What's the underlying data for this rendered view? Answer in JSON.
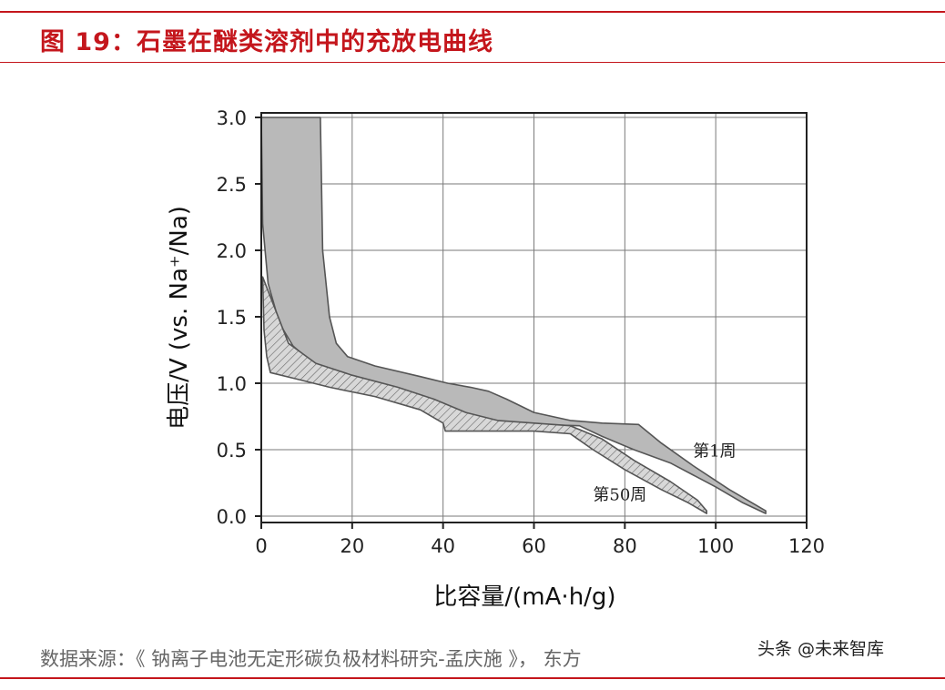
{
  "figure": {
    "title": "图 19：石墨在醚类溶剂中的充放电曲线",
    "source": "数据来源：《 钠离子电池无定形碳负极材料研究-孟庆施 》，  东方",
    "watermark": "头条 @未来智库"
  },
  "colors": {
    "accent": "#c4161c",
    "cycle1_fill": "#b9b9b9",
    "cycle50_fill": "#d8d8d8",
    "outline": "#555555",
    "hatch": "#666666",
    "grid": "#7a7a7a"
  },
  "chart_data": {
    "type": "line",
    "xlabel": "比容量/(mA·h/g)",
    "ylabel": "电压/V (vs. Na⁺/Na)",
    "xlim": [
      0,
      120
    ],
    "ylim": [
      0,
      3
    ],
    "xticks": [
      0,
      20,
      40,
      60,
      80,
      100,
      120
    ],
    "yticks": [
      0.0,
      0.5,
      1.0,
      1.5,
      2.0,
      2.5,
      3.0
    ],
    "yticklabels": [
      "0.0",
      "0.5",
      "1.0",
      "1.5",
      "2.0",
      "2.5",
      "3.0"
    ],
    "grid": true,
    "series": [
      {
        "name": "第1周",
        "fill": "solid",
        "discharge": [
          [
            0,
            3.0
          ],
          [
            0.3,
            2.2
          ],
          [
            1.5,
            1.75
          ],
          [
            4,
            1.45
          ],
          [
            7,
            1.28
          ],
          [
            12,
            1.13
          ],
          [
            20,
            1.03
          ],
          [
            30,
            0.93
          ],
          [
            40,
            0.83
          ],
          [
            50,
            0.72
          ],
          [
            60,
            0.69
          ],
          [
            70,
            0.68
          ],
          [
            75,
            0.6
          ],
          [
            82,
            0.5
          ],
          [
            90,
            0.4
          ],
          [
            100,
            0.22
          ],
          [
            106,
            0.1
          ],
          [
            111,
            0.02
          ]
        ],
        "charge": [
          [
            13,
            3.0
          ],
          [
            13.5,
            2.0
          ],
          [
            15,
            1.5
          ],
          [
            16.5,
            1.3
          ],
          [
            19,
            1.2
          ],
          [
            25,
            1.13
          ],
          [
            35,
            1.05
          ],
          [
            41,
            1.0
          ],
          [
            46,
            0.97
          ],
          [
            50,
            0.94
          ],
          [
            54,
            0.88
          ],
          [
            60,
            0.78
          ],
          [
            68,
            0.72
          ],
          [
            75,
            0.7
          ],
          [
            83,
            0.69
          ],
          [
            88,
            0.55
          ],
          [
            95,
            0.38
          ],
          [
            103,
            0.2
          ],
          [
            111,
            0.04
          ]
        ]
      },
      {
        "name": "第50周",
        "fill": "hatched",
        "discharge": [
          [
            0.3,
            1.8
          ],
          [
            0.6,
            1.4
          ],
          [
            1.2,
            1.2
          ],
          [
            2,
            1.08
          ],
          [
            8,
            1.03
          ],
          [
            15,
            0.97
          ],
          [
            25,
            0.9
          ],
          [
            35,
            0.8
          ],
          [
            40,
            0.7
          ],
          [
            40.5,
            0.64
          ],
          [
            50,
            0.64
          ],
          [
            60,
            0.64
          ],
          [
            68,
            0.62
          ],
          [
            73,
            0.5
          ],
          [
            80,
            0.35
          ],
          [
            88,
            0.2
          ],
          [
            94,
            0.1
          ],
          [
            98,
            0.02
          ]
        ],
        "charge": [
          [
            6,
            1.3
          ],
          [
            12,
            1.15
          ],
          [
            20,
            1.06
          ],
          [
            30,
            0.97
          ],
          [
            38,
            0.88
          ],
          [
            45,
            0.78
          ],
          [
            52,
            0.72
          ],
          [
            60,
            0.7
          ],
          [
            68,
            0.68
          ],
          [
            75,
            0.58
          ],
          [
            82,
            0.42
          ],
          [
            90,
            0.26
          ],
          [
            96,
            0.12
          ],
          [
            98,
            0.04
          ]
        ]
      }
    ],
    "annotations": [
      {
        "text": "第1周",
        "x": 95,
        "y": 0.45
      },
      {
        "text": "第50周",
        "x": 73,
        "y": 0.12
      }
    ]
  }
}
